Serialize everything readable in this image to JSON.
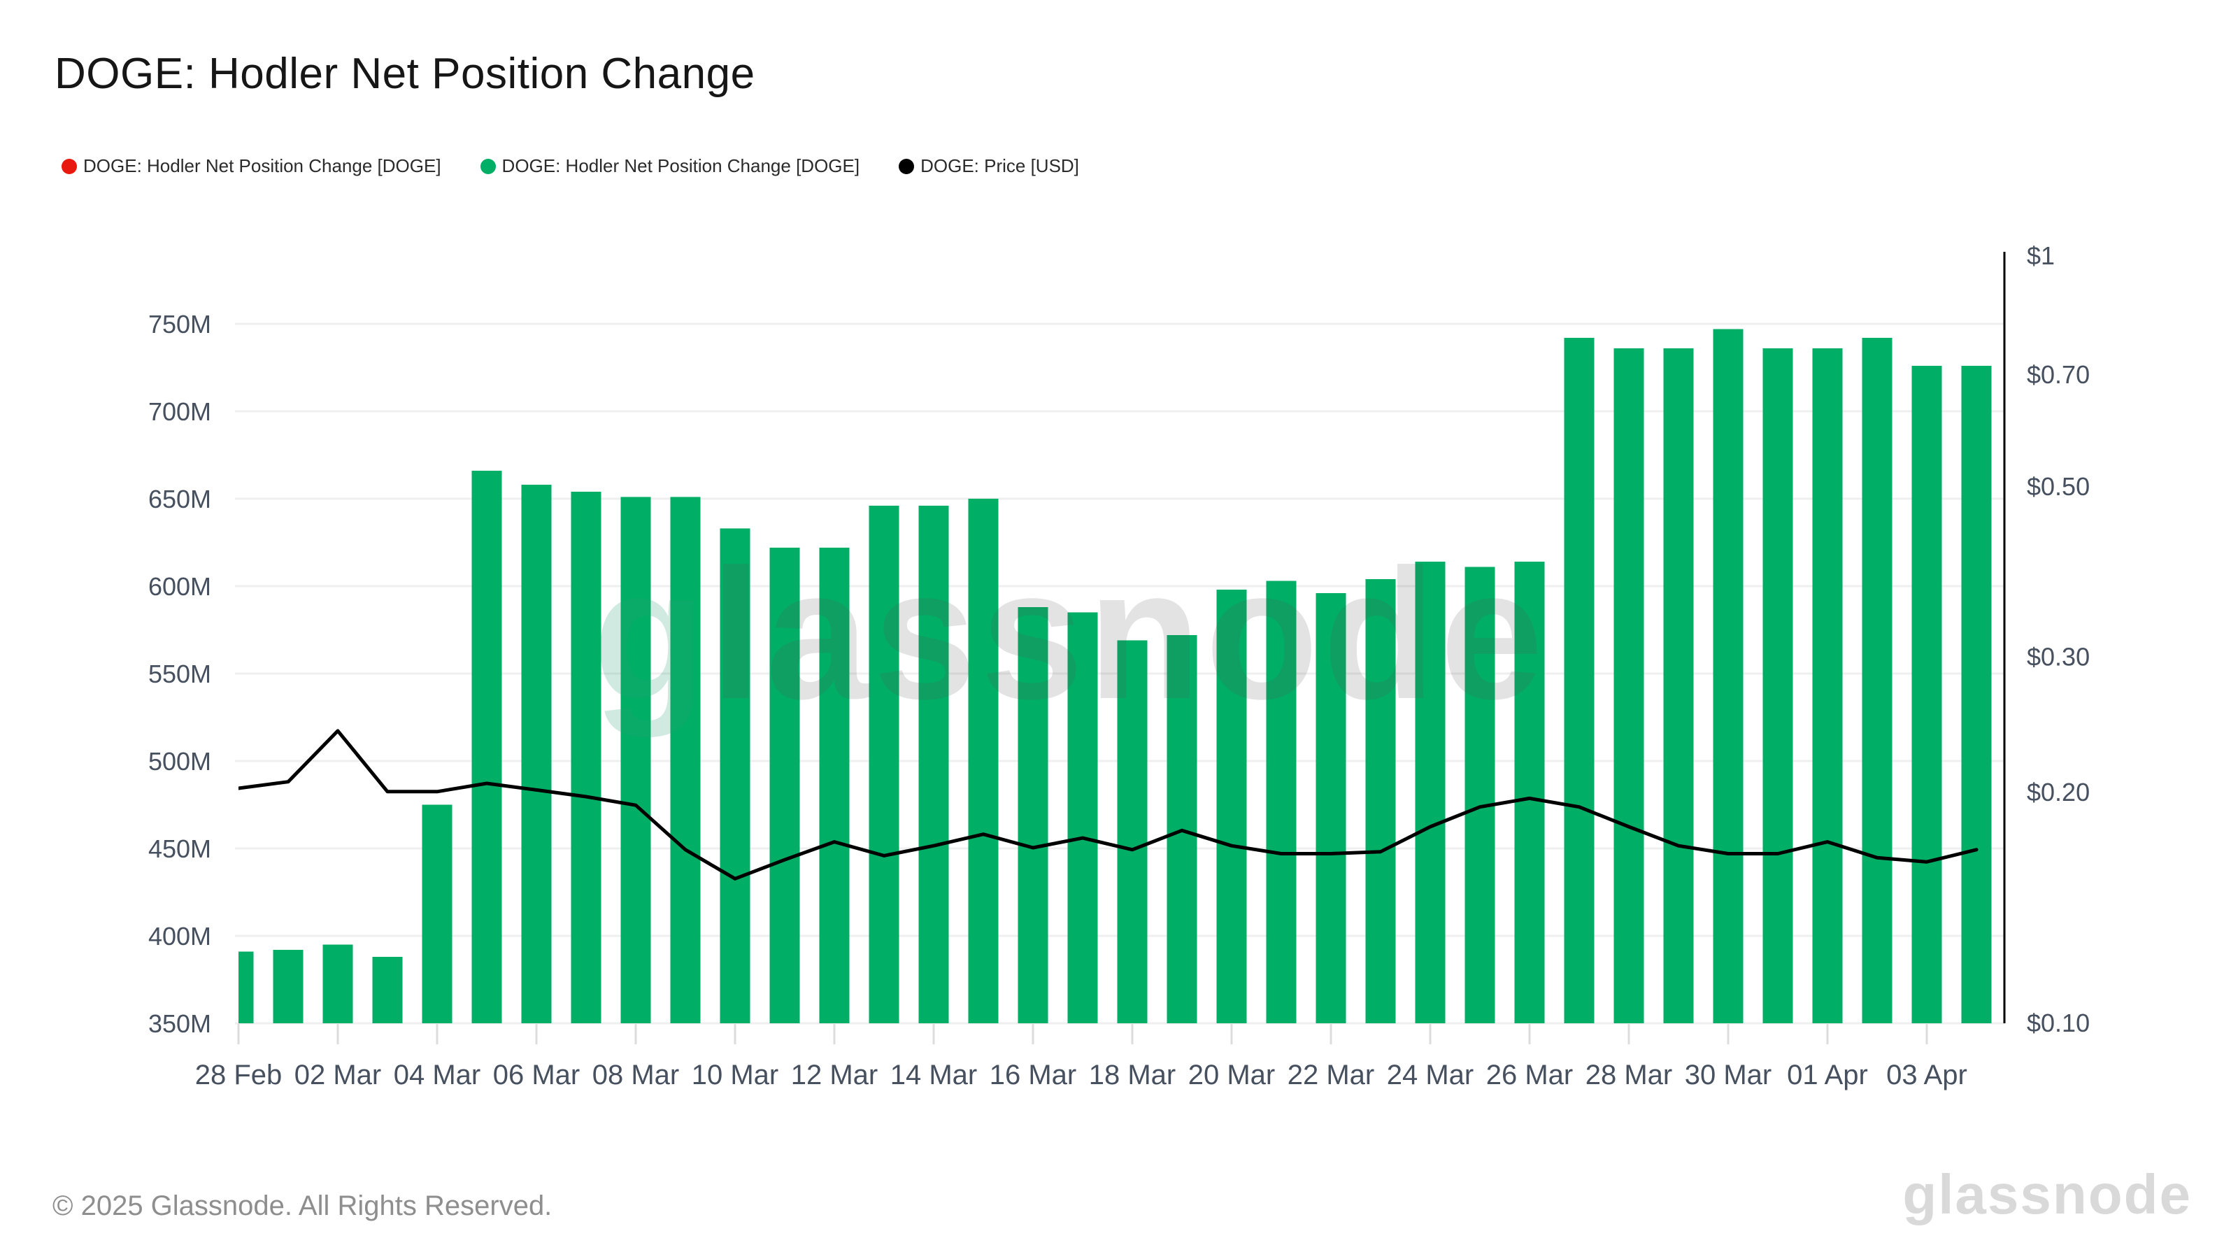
{
  "title": "DOGE: Hodler Net Position Change",
  "legend": [
    {
      "label": "DOGE: Hodler Net Position Change [DOGE]",
      "color": "#e8190f"
    },
    {
      "label": "DOGE: Hodler Net Position Change [DOGE]",
      "color": "#00ae66"
    },
    {
      "label": "DOGE: Price [USD]",
      "color": "#000000"
    }
  ],
  "watermark": "glassnode",
  "footer": {
    "copyright": "© 2025 Glassnode. All Rights Reserved.",
    "brand": "glassnode"
  },
  "chart_data": {
    "type": "bar",
    "title": "DOGE: Hodler Net Position Change",
    "categories": [
      "28 Feb",
      "01 Mar",
      "02 Mar",
      "03 Mar",
      "04 Mar",
      "05 Mar",
      "06 Mar",
      "07 Mar",
      "08 Mar",
      "09 Mar",
      "10 Mar",
      "11 Mar",
      "12 Mar",
      "13 Mar",
      "14 Mar",
      "15 Mar",
      "16 Mar",
      "17 Mar",
      "18 Mar",
      "19 Mar",
      "20 Mar",
      "21 Mar",
      "22 Mar",
      "23 Mar",
      "24 Mar",
      "25 Mar",
      "26 Mar",
      "27 Mar",
      "28 Mar",
      "29 Mar",
      "30 Mar",
      "31 Mar",
      "01 Apr",
      "02 Apr",
      "03 Apr",
      "04 Apr"
    ],
    "x_ticks": [
      "28 Feb",
      "02 Mar",
      "04 Mar",
      "06 Mar",
      "08 Mar",
      "10 Mar",
      "12 Mar",
      "14 Mar",
      "16 Mar",
      "18 Mar",
      "20 Mar",
      "22 Mar",
      "24 Mar",
      "26 Mar",
      "28 Mar",
      "30 Mar",
      "01 Apr",
      "03 Apr"
    ],
    "x_tick_every": 2,
    "series": [
      {
        "name": "DOGE: Hodler Net Position Change [DOGE]",
        "type": "bar",
        "color": "#00ae66",
        "axis": "left",
        "values_in": "millions of DOGE",
        "values": [
          391,
          392,
          395,
          388,
          475,
          666,
          658,
          654,
          651,
          651,
          633,
          622,
          622,
          646,
          646,
          650,
          588,
          585,
          569,
          572,
          598,
          603,
          596,
          604,
          614,
          611,
          614,
          742,
          736,
          736,
          747,
          736,
          736,
          742,
          726,
          726
        ]
      },
      {
        "name": "DOGE: Price [USD]",
        "type": "line",
        "color": "#000000",
        "axis": "right",
        "values_in": "USD",
        "values": [
          0.202,
          0.206,
          0.24,
          0.2,
          0.2,
          0.205,
          0.201,
          0.197,
          0.192,
          0.168,
          0.154,
          0.163,
          0.172,
          0.165,
          0.17,
          0.176,
          0.169,
          0.174,
          0.168,
          0.178,
          0.17,
          0.166,
          0.166,
          0.167,
          0.18,
          0.191,
          0.196,
          0.191,
          0.18,
          0.17,
          0.166,
          0.166,
          0.172,
          0.164,
          0.162,
          0.168
        ]
      }
    ],
    "left_axis": {
      "ticks": [
        "350M",
        "400M",
        "450M",
        "500M",
        "550M",
        "600M",
        "650M",
        "700M",
        "750M"
      ],
      "tick_values": [
        350,
        400,
        450,
        500,
        550,
        600,
        650,
        700,
        750
      ],
      "range": [
        350,
        790
      ],
      "scale": "linear",
      "grid": true
    },
    "right_axis": {
      "ticks": [
        "$1",
        "$0.70",
        "$0.50",
        "$0.30",
        "$0.20",
        "$0.10"
      ],
      "tick_values": [
        1,
        0.7,
        0.5,
        0.3,
        0.2,
        0.1
      ],
      "range": [
        0.1,
        1
      ],
      "scale": "log",
      "grid": false
    },
    "legend_position": "top-left"
  }
}
